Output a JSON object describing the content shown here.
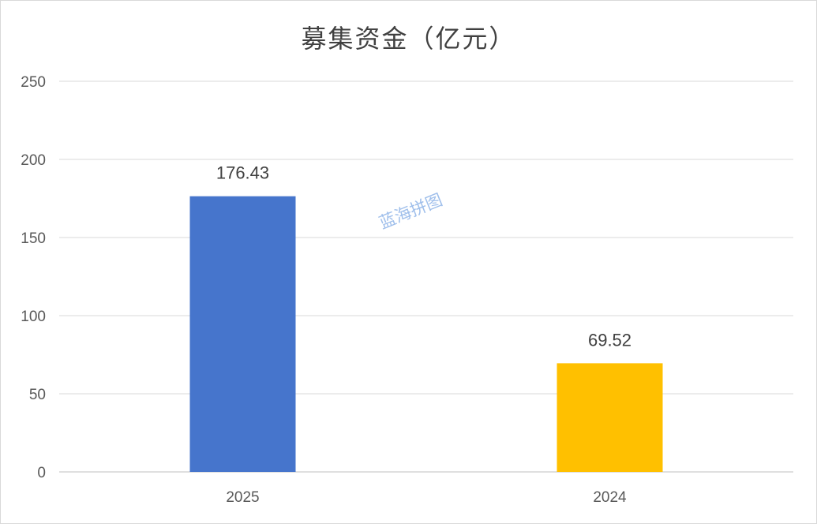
{
  "chart_data": {
    "type": "bar",
    "title": "募集资金（亿元）",
    "categories": [
      "2025",
      "2024"
    ],
    "values": [
      176.43,
      69.52
    ],
    "data_labels": [
      "176.43",
      "69.52"
    ],
    "colors": [
      "#4675CC",
      "#FFC000"
    ],
    "ylim": [
      0,
      250
    ],
    "yticks": [
      "0",
      "50",
      "100",
      "150",
      "200",
      "250"
    ],
    "grid": true,
    "legend": "none"
  },
  "watermark": {
    "text": "蓝海拼图"
  }
}
